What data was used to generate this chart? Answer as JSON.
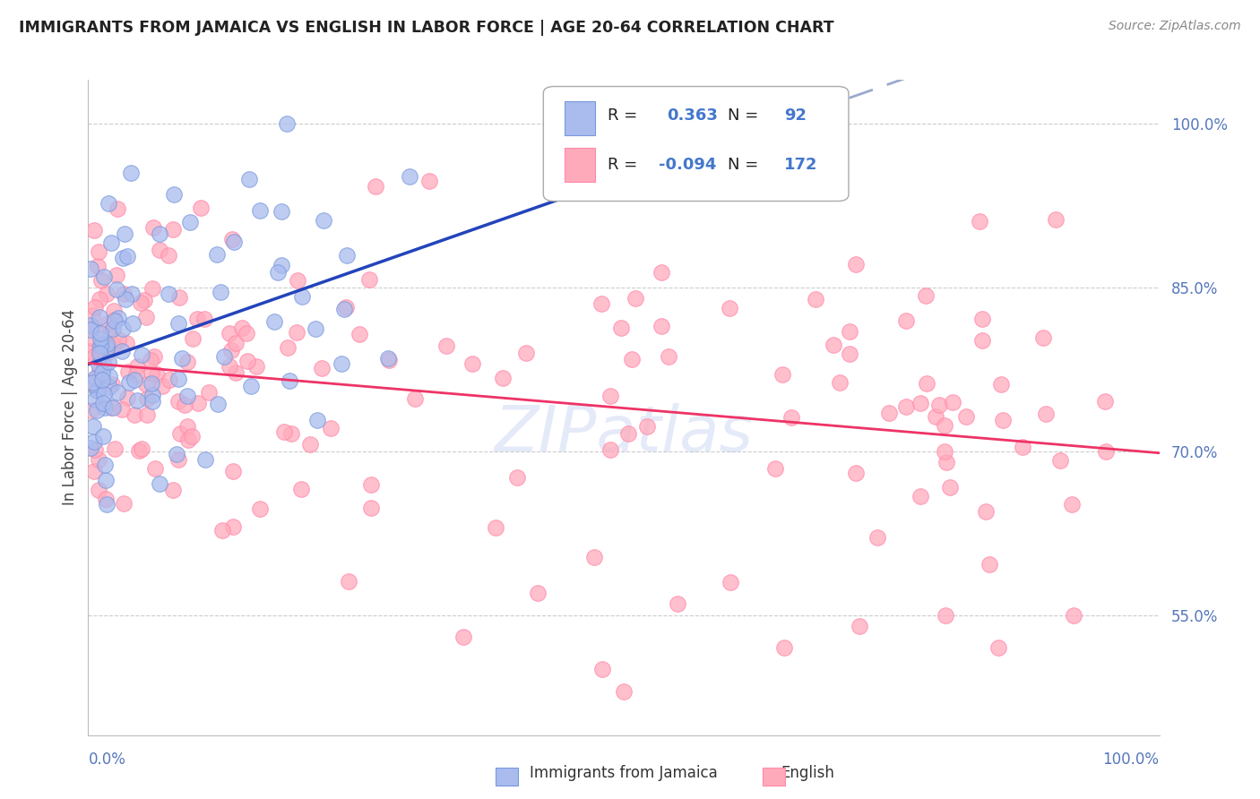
{
  "title": "IMMIGRANTS FROM JAMAICA VS ENGLISH IN LABOR FORCE | AGE 20-64 CORRELATION CHART",
  "source": "Source: ZipAtlas.com",
  "ylabel": "In Labor Force | Age 20-64",
  "ytick_labels": [
    "100.0%",
    "85.0%",
    "70.0%",
    "55.0%"
  ],
  "ytick_values": [
    1.0,
    0.85,
    0.7,
    0.55
  ],
  "xlim": [
    0.0,
    1.0
  ],
  "ylim": [
    0.44,
    1.04
  ],
  "watermark": "ZIPatlas",
  "blue_R": 0.363,
  "blue_N": 92,
  "pink_R": -0.094,
  "pink_N": 172,
  "blue_dot_color": "#aabbee",
  "blue_dot_edge": "#7799dd",
  "pink_dot_color": "#ffaabb",
  "pink_dot_edge": "#ff88aa",
  "blue_line_color": "#2244bb",
  "blue_dash_color": "#99aacc",
  "pink_line_color": "#ee3366",
  "background_color": "#ffffff",
  "grid_color": "#cccccc",
  "title_color": "#222222",
  "tick_label_color": "#5577bb",
  "legend_text_color": "#222222",
  "legend_value_color": "#4477cc"
}
